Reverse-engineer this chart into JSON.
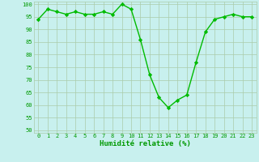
{
  "x": [
    0,
    1,
    2,
    3,
    4,
    5,
    6,
    7,
    8,
    9,
    10,
    11,
    12,
    13,
    14,
    15,
    16,
    17,
    18,
    19,
    20,
    21,
    22,
    23
  ],
  "y": [
    94,
    98,
    97,
    96,
    97,
    96,
    96,
    97,
    96,
    100,
    98,
    86,
    72,
    63,
    59,
    62,
    64,
    77,
    89,
    94,
    95,
    96,
    95,
    95
  ],
  "line_color": "#00bb00",
  "marker_color": "#00bb00",
  "bg_color": "#c8f0ee",
  "grid_color": "#aaccaa",
  "xlabel": "Humidité relative (%)",
  "xlabel_color": "#009900",
  "tick_color": "#009900",
  "ylim": [
    49,
    101
  ],
  "xlim": [
    -0.5,
    23.5
  ],
  "yticks": [
    50,
    55,
    60,
    65,
    70,
    75,
    80,
    85,
    90,
    95,
    100
  ],
  "xticks": [
    0,
    1,
    2,
    3,
    4,
    5,
    6,
    7,
    8,
    9,
    10,
    11,
    12,
    13,
    14,
    15,
    16,
    17,
    18,
    19,
    20,
    21,
    22,
    23
  ],
  "marker": "D",
  "marker_size": 2.2,
  "line_width": 1.0,
  "title_fontsize": 7,
  "xlabel_fontsize": 6.5,
  "tick_fontsize": 5.0
}
